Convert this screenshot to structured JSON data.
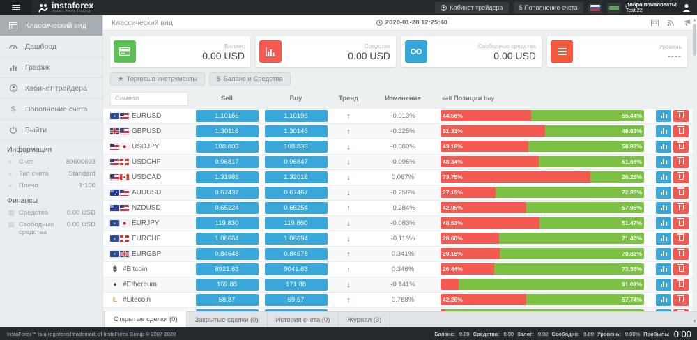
{
  "header": {
    "logo_title": "instaforex",
    "logo_subtitle": "Instant Forex Trading",
    "trader_cabinet_label": "Кабинет трейдера",
    "deposit_label": "$ Пополнение счета",
    "welcome_line1": "Добро пожаловать!",
    "welcome_line2": "Test 22"
  },
  "sidebar": {
    "items": [
      {
        "label": "Классический вид",
        "icon": "table-icon",
        "active": true
      },
      {
        "label": "Дашборд",
        "icon": "dashboard-icon",
        "active": false
      },
      {
        "label": "График",
        "icon": "chart-icon",
        "active": false
      },
      {
        "label": "Кабинет трейдера",
        "icon": "user-icon",
        "active": false
      },
      {
        "label": "Пополнение счета",
        "icon": "dollar-icon",
        "active": false
      },
      {
        "label": "Выйти",
        "icon": "power-icon",
        "active": false
      }
    ],
    "info_section": {
      "title": "Информация",
      "rows": [
        {
          "label": "Счет",
          "value": "80600693"
        },
        {
          "label": "Тип счета",
          "value": "Standard"
        },
        {
          "label": "Плечо",
          "value": "1:100"
        }
      ]
    },
    "finance_section": {
      "title": "Финансы",
      "rows": [
        {
          "label": "Средства",
          "value": "0.00 USD"
        },
        {
          "label": "Свободные средства",
          "value": "0.00 USD"
        }
      ]
    }
  },
  "content_header": {
    "title": "Классический вид",
    "datetime": "2020-01-28 12:25:40"
  },
  "stat_cards": [
    {
      "label": "Баланс",
      "value": "0.00 USD",
      "icon": "credit-card-icon",
      "color": "#5dbf55"
    },
    {
      "label": "Средства",
      "value": "0.00 USD",
      "icon": "bar-chart-icon",
      "color": "#f25a52"
    },
    {
      "label": "Свободные средства",
      "value": "0.00 USD",
      "icon": "binoculars-icon",
      "color": "#35a6d8"
    },
    {
      "label": "Уровень",
      "value": "----",
      "icon": "menu-icon",
      "color": "#f2593d"
    }
  ],
  "toolbar": {
    "instruments_label": "Торговые инструменты",
    "balance_label": "Баланс и Средства",
    "star_glyph": "★",
    "dollar_glyph": "$"
  },
  "table": {
    "symbol_placeholder": "Символ",
    "headers": {
      "sell": "Sell",
      "buy": "Buy",
      "trend": "Тренд",
      "change": "Изменение",
      "positions_left": "sell",
      "positions_mid": "Позиции",
      "positions_right": "buy"
    },
    "rows": [
      {
        "symbol": "EURUSD",
        "flags": [
          "eu",
          "us"
        ],
        "sell": "1.10166",
        "buy": "1.10196",
        "trend": "up",
        "change": "-0.013%",
        "sell_pct": 44.56,
        "buy_pct": 55.44,
        "sell_label": "44.56%",
        "buy_label": "55.44%"
      },
      {
        "symbol": "GBPUSD",
        "flags": [
          "gb",
          "us"
        ],
        "sell": "1.30116",
        "buy": "1.30146",
        "trend": "up",
        "change": "-0.325%",
        "sell_pct": 51.31,
        "buy_pct": 48.69,
        "sell_label": "51.31%",
        "buy_label": "48.69%"
      },
      {
        "symbol": "USDJPY",
        "flags": [
          "us",
          "jp"
        ],
        "sell": "108.803",
        "buy": "108.833",
        "trend": "down",
        "change": "-0.080%",
        "sell_pct": 43.18,
        "buy_pct": 56.82,
        "sell_label": "43.18%",
        "buy_label": "56.82%"
      },
      {
        "symbol": "USDCHF",
        "flags": [
          "us",
          "ch"
        ],
        "sell": "0.96817",
        "buy": "0.96847",
        "trend": "down",
        "change": "-0.096%",
        "sell_pct": 48.34,
        "buy_pct": 51.66,
        "sell_label": "48.34%",
        "buy_label": "51.66%"
      },
      {
        "symbol": "USDCAD",
        "flags": [
          "us",
          "ca"
        ],
        "sell": "1.31988",
        "buy": "1.32018",
        "trend": "down",
        "change": "0.067%",
        "sell_pct": 73.75,
        "buy_pct": 26.25,
        "sell_label": "73.75%",
        "buy_label": "26.25%"
      },
      {
        "symbol": "AUDUSD",
        "flags": [
          "au",
          "us"
        ],
        "sell": "0.67437",
        "buy": "0.67467",
        "trend": "down",
        "change": "-0.256%",
        "sell_pct": 27.15,
        "buy_pct": 72.85,
        "sell_label": "27.15%",
        "buy_label": "72.85%"
      },
      {
        "symbol": "NZDUSD",
        "flags": [
          "nz",
          "us"
        ],
        "sell": "0.65224",
        "buy": "0.65254",
        "trend": "up",
        "change": "-0.284%",
        "sell_pct": 42.05,
        "buy_pct": 57.95,
        "sell_label": "42.05%",
        "buy_label": "57.95%"
      },
      {
        "symbol": "EURJPY",
        "flags": [
          "eu",
          "jp"
        ],
        "sell": "119.830",
        "buy": "119.860",
        "trend": "down",
        "change": "-0.083%",
        "sell_pct": 48.53,
        "buy_pct": 51.47,
        "sell_label": "48.53%",
        "buy_label": "51.47%"
      },
      {
        "symbol": "EURCHF",
        "flags": [
          "eu",
          "ch"
        ],
        "sell": "1.06664",
        "buy": "1.06694",
        "trend": "down",
        "change": "-0.118%",
        "sell_pct": 28.6,
        "buy_pct": 71.4,
        "sell_label": "28.60%",
        "buy_label": "71.40%"
      },
      {
        "symbol": "EURGBP",
        "flags": [
          "eu",
          "gb"
        ],
        "sell": "0.84648",
        "buy": "0.84678",
        "trend": "up",
        "change": "0.341%",
        "sell_pct": 29.18,
        "buy_pct": 70.82,
        "sell_label": "29.18%",
        "buy_label": "70.82%"
      },
      {
        "symbol": "#Bitcoin",
        "crypto": "btc",
        "crypto_glyph": "฿",
        "sell": "8921.63",
        "buy": "9041.63",
        "trend": "up",
        "change": "0.346%",
        "sell_pct": 26.44,
        "buy_pct": 73.56,
        "sell_label": "26.44%",
        "buy_label": "73.56%"
      },
      {
        "symbol": "#Ethereum",
        "crypto": "eth",
        "crypto_glyph": "♦",
        "sell": "169.88",
        "buy": "171.88",
        "trend": "down",
        "change": "-0.141%",
        "sell_pct": 8.98,
        "buy_pct": 91.02,
        "sell_label": "",
        "buy_label": "91.02%"
      },
      {
        "symbol": "#Litecoin",
        "crypto": "ltc",
        "crypto_glyph": "Ł",
        "sell": "58.87",
        "buy": "59.57",
        "trend": "up",
        "change": "0.788%",
        "sell_pct": 42.26,
        "buy_pct": 57.74,
        "sell_label": "42.26%",
        "buy_label": "57.74%"
      },
      {
        "symbol": "",
        "crypto": "",
        "crypto_glyph": "",
        "sell": "",
        "buy": "",
        "trend": "",
        "change": "",
        "sell_pct": 2.5,
        "buy_pct": 97.5,
        "sell_label": "",
        "buy_label": "",
        "partial": true
      }
    ]
  },
  "bottom_tabs": [
    {
      "label": "Открытые сделки (0)",
      "active": true
    },
    {
      "label": "Закрытые сделки (0)",
      "active": false
    },
    {
      "label": "История счета (0)",
      "active": false
    },
    {
      "label": "Журнал (3)",
      "active": false
    }
  ],
  "footer": {
    "copyright": "InstaForex™ is a registered trademark of InstaForex Group © 2007-2020",
    "stats": [
      {
        "label": "Баланс:",
        "value": "0.00"
      },
      {
        "label": "Средства:",
        "value": "0.00"
      },
      {
        "label": "Залог:",
        "value": "0.00"
      },
      {
        "label": "Свободно:",
        "value": "0.00"
      },
      {
        "label": "Уровень:",
        "value": "0.00%"
      },
      {
        "label": "Прибыль:",
        "value": "0.00",
        "big": true
      }
    ]
  }
}
